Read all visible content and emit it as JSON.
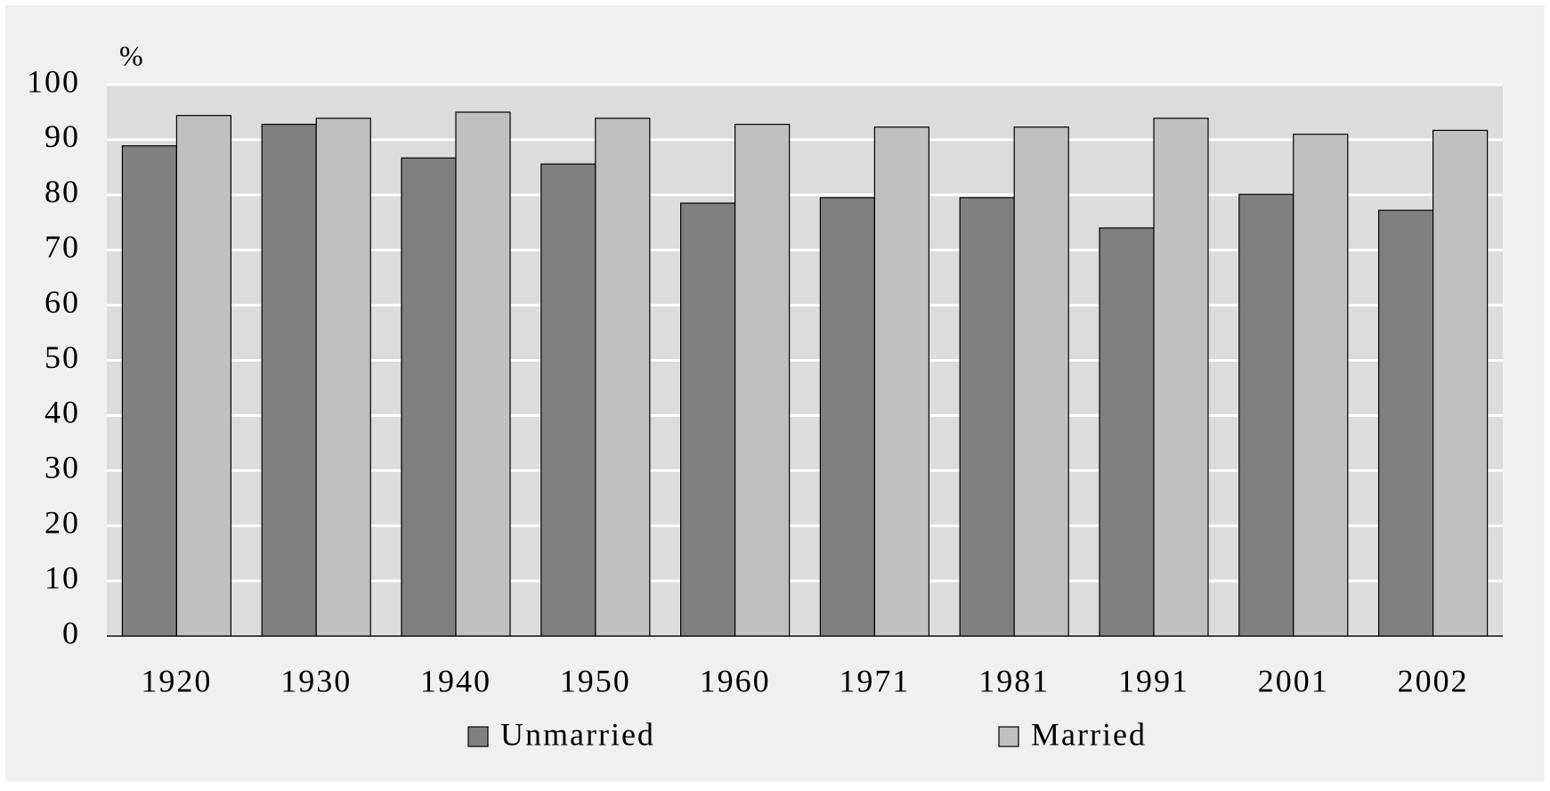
{
  "chart_data": {
    "type": "bar",
    "y_label": "%",
    "categories": [
      "1920",
      "1930",
      "1940",
      "1950",
      "1960",
      "1971",
      "1981",
      "1991",
      "2001",
      "2002"
    ],
    "series": [
      {
        "name": "Unmarried",
        "color": "#808080",
        "values": [
          88.9,
          92.8,
          86.7,
          85.6,
          78.5,
          79.5,
          79.5,
          74.0,
          80.1,
          77.2
        ]
      },
      {
        "name": "Married",
        "color": "#c0c0c0",
        "values": [
          94.4,
          93.9,
          95.0,
          93.9,
          92.8,
          92.3,
          92.3,
          93.9,
          91.0,
          91.7
        ]
      }
    ],
    "ylim": [
      0,
      100
    ],
    "yticks": [
      0,
      10,
      20,
      30,
      40,
      50,
      60,
      70,
      80,
      90,
      100
    ],
    "grid": true
  }
}
